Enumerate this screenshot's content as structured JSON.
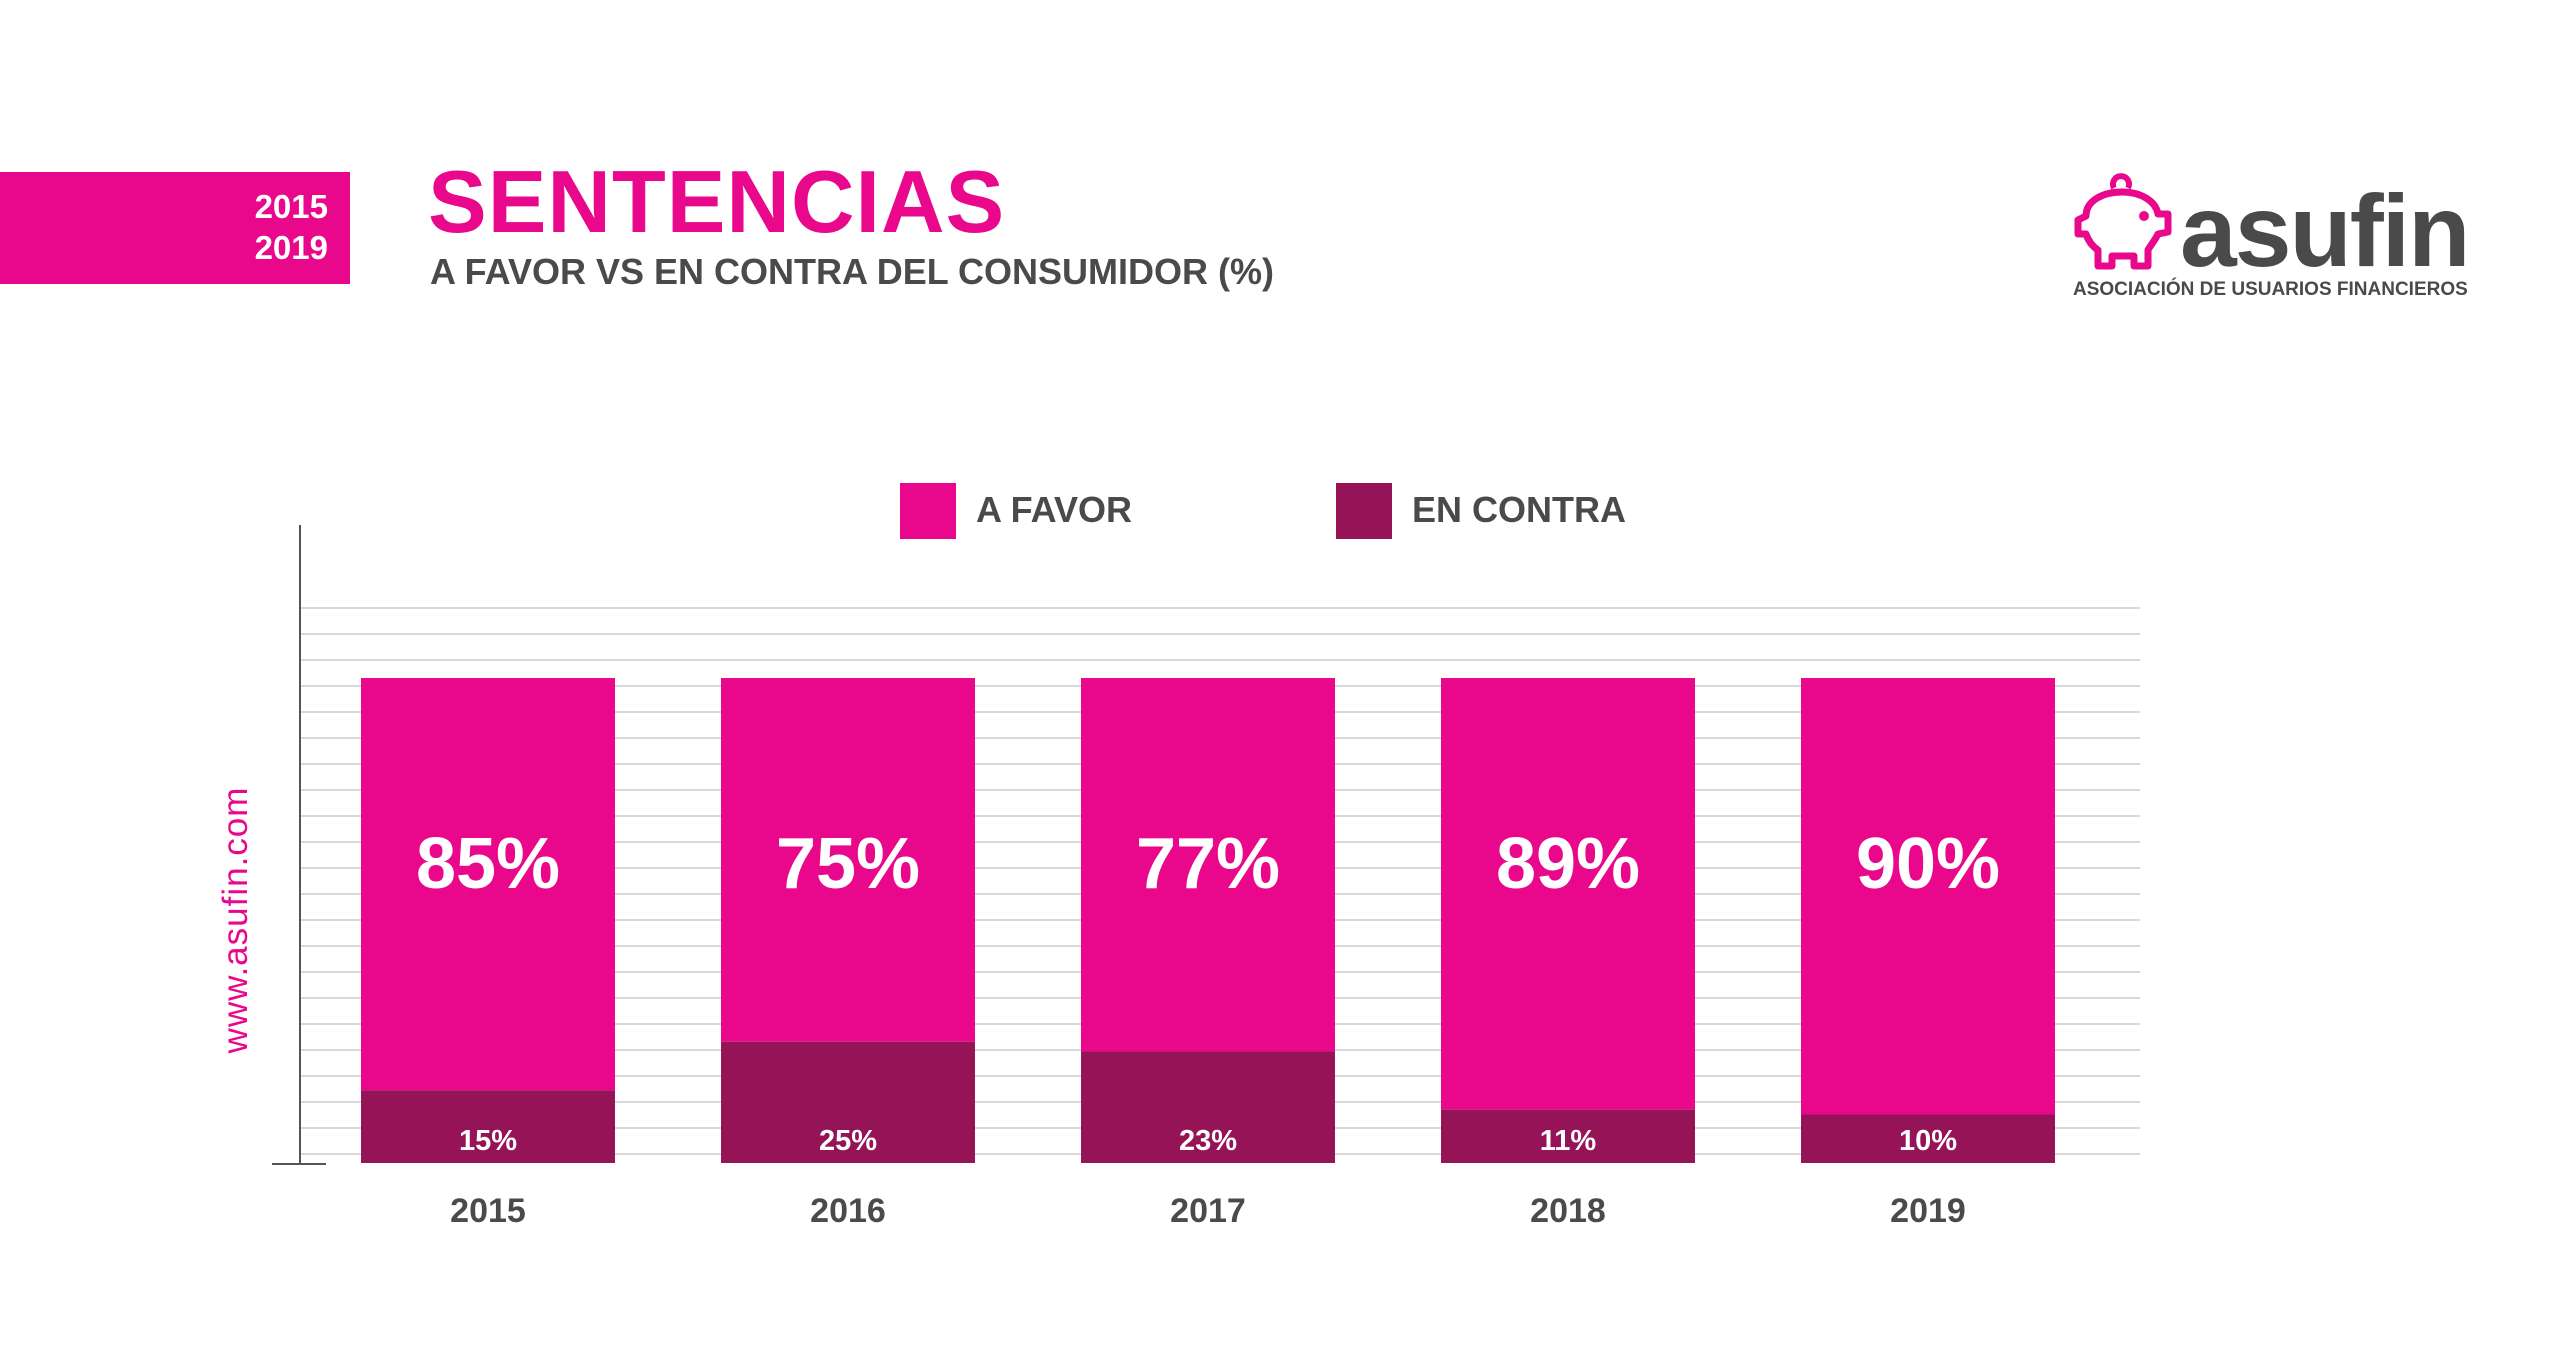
{
  "header": {
    "year_start": "2015",
    "year_end": "2019",
    "title": "SENTENCIAS",
    "subtitle": "A FAVOR VS EN CONTRA DEL CONSUMIDOR (%)"
  },
  "logo": {
    "name": "asufin",
    "tagline": "ASOCIACIÓN DE USUARIOS FINANCIEROS",
    "icon": "piggy-bank-icon"
  },
  "side_text": "www.asufin.com",
  "colors": {
    "favor": "#e9078c",
    "contra": "#951458",
    "text": "#4a4a4a",
    "grid": "#d9d9d9"
  },
  "legend": [
    {
      "label": "A FAVOR",
      "color": "#e9078c"
    },
    {
      "label": "EN CONTRA",
      "color": "#951458"
    }
  ],
  "chart_data": {
    "type": "bar",
    "stacked": true,
    "title": "SENTENCIAS",
    "subtitle": "A FAVOR VS EN CONTRA DEL CONSUMIDOR (%)",
    "categories": [
      "2015",
      "2016",
      "2017",
      "2018",
      "2019"
    ],
    "series": [
      {
        "name": "EN CONTRA",
        "values": [
          15,
          25,
          23,
          11,
          10
        ],
        "labels": [
          "15%",
          "25%",
          "23%",
          "11%",
          "10%"
        ]
      },
      {
        "name": "A FAVOR",
        "values": [
          85,
          75,
          77,
          89,
          90
        ],
        "labels": [
          "85%",
          "75%",
          "77%",
          "89%",
          "90%"
        ]
      }
    ],
    "xlabel": "",
    "ylabel": "",
    "ylim": [
      0,
      100
    ],
    "grid": true,
    "legend_position": "top-center"
  }
}
